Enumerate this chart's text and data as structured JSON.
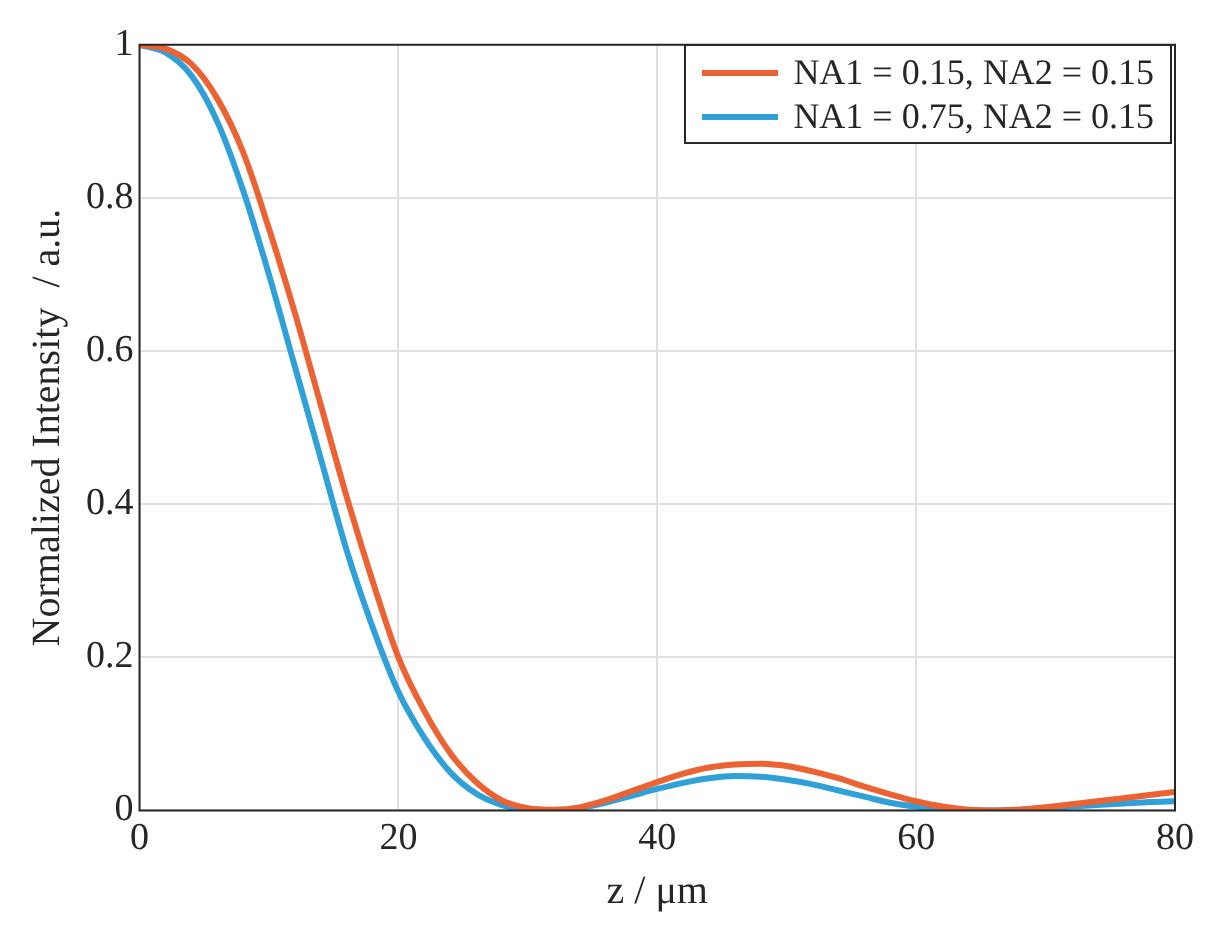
{
  "chart_data": {
    "type": "line",
    "xlabel": "z / μm",
    "ylabel": "Normalized Intensity  / a.u.",
    "x": [
      0,
      2,
      4,
      6,
      8,
      10,
      12,
      14,
      16,
      18,
      20,
      22,
      24,
      26,
      28,
      30,
      32,
      34,
      36,
      38,
      40,
      42,
      44,
      46,
      48,
      50,
      52,
      54,
      56,
      58,
      60,
      62,
      64,
      66,
      68,
      70,
      72,
      74,
      76,
      78,
      80
    ],
    "series": [
      {
        "name": "NA1 = 0.15, NA2 = 0.15",
        "color": "#ec6233",
        "values": [
          1,
          0.995,
          0.975,
          0.93,
          0.86,
          0.76,
          0.65,
          0.53,
          0.41,
          0.3,
          0.2,
          0.13,
          0.075,
          0.037,
          0.013,
          0.003,
          0.001,
          0.004,
          0.013,
          0.025,
          0.037,
          0.048,
          0.056,
          0.06,
          0.061,
          0.058,
          0.051,
          0.042,
          0.031,
          0.021,
          0.012,
          0.005,
          0.001,
          0,
          0.001,
          0.004,
          0.008,
          0.012,
          0.016,
          0.02,
          0.024
        ]
      },
      {
        "name": "NA1 = 0.75, NA2 = 0.15",
        "color": "#2fa0d8",
        "values": [
          1,
          0.99,
          0.96,
          0.9,
          0.81,
          0.7,
          0.58,
          0.46,
          0.34,
          0.24,
          0.155,
          0.095,
          0.05,
          0.022,
          0.007,
          0.001,
          0,
          0.003,
          0.01,
          0.019,
          0.028,
          0.036,
          0.042,
          0.045,
          0.044,
          0.04,
          0.034,
          0.026,
          0.018,
          0.01,
          0.005,
          0.002,
          0,
          0,
          0.001,
          0.003,
          0.005,
          0.007,
          0.009,
          0.011,
          0.012
        ]
      }
    ],
    "xlim": [
      0,
      80
    ],
    "xticks": [
      0,
      20,
      40,
      60,
      80
    ],
    "ylim": [
      0,
      1
    ],
    "yticks": [
      0,
      0.2,
      0.4,
      0.6,
      0.8,
      1
    ],
    "grid": true,
    "legend": "top right",
    "marker": "none",
    "line_style": "solid"
  }
}
